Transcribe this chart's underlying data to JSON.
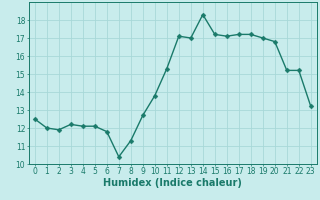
{
  "x": [
    0,
    1,
    2,
    3,
    4,
    5,
    6,
    7,
    8,
    9,
    10,
    11,
    12,
    13,
    14,
    15,
    16,
    17,
    18,
    19,
    20,
    21,
    22,
    23
  ],
  "y": [
    12.5,
    12.0,
    11.9,
    12.2,
    12.1,
    12.1,
    11.8,
    10.4,
    11.3,
    12.7,
    13.8,
    15.3,
    17.1,
    17.0,
    18.3,
    17.2,
    17.1,
    17.2,
    17.2,
    17.0,
    16.8,
    15.2,
    15.2,
    13.2
  ],
  "line_color": "#1a7a6a",
  "marker_color": "#1a7a6a",
  "bg_color": "#c8ecec",
  "grid_color": "#a8d8d8",
  "xlabel": "Humidex (Indice chaleur)",
  "ylim": [
    10,
    19
  ],
  "xlim": [
    -0.5,
    23.5
  ],
  "yticks": [
    10,
    11,
    12,
    13,
    14,
    15,
    16,
    17,
    18
  ],
  "xticks": [
    0,
    1,
    2,
    3,
    4,
    5,
    6,
    7,
    8,
    9,
    10,
    11,
    12,
    13,
    14,
    15,
    16,
    17,
    18,
    19,
    20,
    21,
    22,
    23
  ],
  "tick_fontsize": 5.5,
  "xlabel_fontsize": 7.0,
  "linewidth": 1.0,
  "markersize": 2.5
}
